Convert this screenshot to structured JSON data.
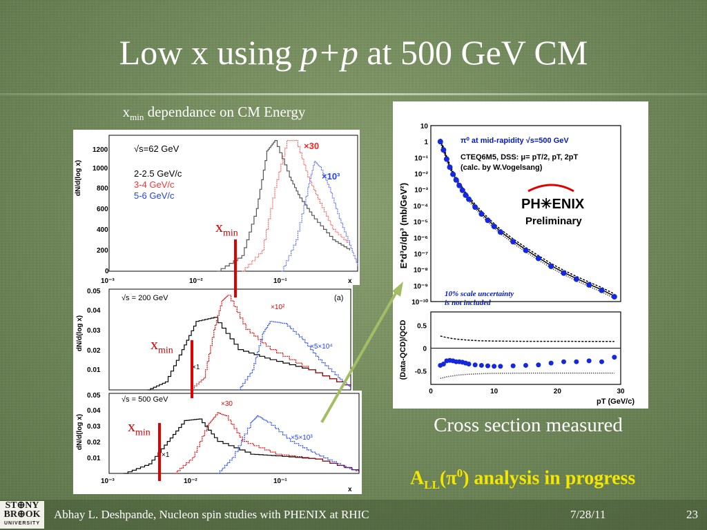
{
  "slide": {
    "title_part1": "Low x using ",
    "title_italic": "p+p",
    "title_part2": " at 500 GeV CM",
    "subtitle_x": "x",
    "subtitle_sub": "min",
    "subtitle_rest": " dependance on CM Energy",
    "xmin_label": "x",
    "xmin_sub": "min",
    "caption": "Cross section measured",
    "progress_A": "A",
    "progress_LL": "LL",
    "progress_open": "(π",
    "progress_zero": "0",
    "progress_rest": ") analysis in progress"
  },
  "footer": {
    "logo_line1": "ST⊕NY",
    "logo_line2": "BR⊕OK",
    "logo_line3": "UNIVERSITY",
    "author": "Abhay L. Deshpande, Nucleon spin studies with PHENIX at RHIC",
    "date": "7/28/11",
    "page": "23"
  },
  "plot_top": {
    "ylabel": "dN/d(log x)",
    "legend_energy": "√s=62  GeV",
    "legend_1": "2-2.5 GeV/c",
    "legend_2": "3-4 GeV/c",
    "legend_3": "5-6 GeV/c",
    "scale_red": "×30",
    "scale_blue": "×10³",
    "xlabel": "x",
    "yticks": [
      "1200",
      "1000",
      "800",
      "600",
      "400",
      "200",
      "0"
    ],
    "xticks": [
      "10⁻³",
      "10⁻²",
      "10⁻¹",
      "x"
    ]
  },
  "plot_mid": {
    "ylabel": "dN/d(log x)",
    "legend_energy": "√s = 200 GeV",
    "panel_tag": "(a)",
    "scale_black": "×1",
    "scale_red": "×10²",
    "scale_blue": "×5×10⁴",
    "yticks": [
      "0.05",
      "0.04",
      "0.03",
      "0.02",
      "0.01"
    ]
  },
  "plot_bot": {
    "ylabel": "dN/d(log x)",
    "legend_energy": "√s = 500 GeV",
    "scale_black": "×1",
    "scale_red": "×30",
    "scale_blue": "×5×10³",
    "yticks": [
      "0.05",
      "0.04",
      "0.03",
      "0.02",
      "0.01"
    ],
    "xticks": [
      "10⁻³",
      "10⁻²",
      "10⁻¹"
    ],
    "xlabel": "x"
  },
  "plot_right": {
    "ylabel": "E*d³σ/dp³ (mb/GeV²)",
    "ylabel_ratio": "(Data-QCD)/QCD",
    "legend_1": "π⁰ at mid-rapidity √s=500 GeV",
    "legend_2": "CTEQ6M5, DSS: μ= pT/2, pT, 2pT",
    "legend_3": "(calc. by W.Vogelsang)",
    "logo": "PH✳ENIX",
    "preliminary": "Preliminary",
    "note_1": "10% scale uncertainty",
    "note_2": "is not included",
    "yticks": [
      "10",
      "1",
      "10⁻¹",
      "10⁻²",
      "10⁻³",
      "10⁻⁴",
      "10⁻⁵",
      "10⁻⁶",
      "10⁻⁷",
      "10⁻⁸",
      "10⁻⁹",
      "10⁻¹⁰"
    ],
    "ratio_yticks": [
      "0.5",
      "0",
      "-0.5"
    ],
    "xticks": [
      "0",
      "10",
      "20",
      "30"
    ],
    "xlabel": "pT (GeV/c)"
  },
  "colors": {
    "background": "#6f8859",
    "accent_red": "#e00000",
    "progress_yellow": "#f3e600",
    "hist_gray": "#555555",
    "hist_red": "#ff6060",
    "hist_blue": "#6070ff"
  },
  "chart_data": [
    {
      "type": "line",
      "y_scale": "linear",
      "x_scale": "log",
      "xlim": [
        0.001,
        1
      ],
      "ylim": [
        0,
        1300
      ],
      "series": [
        {
          "name": "2-2.5 GeV/c",
          "x": [
            0.02,
            0.04,
            0.06,
            0.08,
            0.1,
            0.15,
            0.2,
            0.3,
            0.5,
            0.8
          ],
          "y": [
            0,
            150,
            600,
            1150,
            1250,
            900,
            700,
            500,
            300,
            200
          ]
        },
        {
          "name": "3-4 GeV/c",
          "x": [
            0.04,
            0.07,
            0.1,
            0.14,
            0.18,
            0.25,
            0.35,
            0.5,
            0.8
          ],
          "y": [
            0,
            200,
            800,
            1250,
            1250,
            900,
            650,
            400,
            250
          ]
        },
        {
          "name": "5-6 GeV/c",
          "x": [
            0.12,
            0.18,
            0.25,
            0.3,
            0.35,
            0.45,
            0.6,
            0.8,
            1.0
          ],
          "y": [
            0,
            300,
            800,
            1050,
            1000,
            800,
            500,
            250,
            50
          ]
        }
      ]
    },
    {
      "type": "line",
      "y_scale": "linear",
      "x_scale": "log",
      "ylim": [
        0,
        0.05
      ],
      "series": [
        {
          "name": "×1",
          "x": [
            0.003,
            0.005,
            0.008,
            0.012,
            0.02,
            0.04,
            0.1,
            0.3,
            1.0
          ],
          "y": [
            0,
            0.004,
            0.02,
            0.034,
            0.036,
            0.02,
            0.015,
            0.01,
            0.001
          ]
        },
        {
          "name": "×10²",
          "x": [
            0.01,
            0.015,
            0.02,
            0.025,
            0.03,
            0.05,
            0.1,
            0.3,
            1.0
          ],
          "y": [
            0,
            0.006,
            0.03,
            0.044,
            0.047,
            0.03,
            0.02,
            0.01,
            0.001
          ]
        },
        {
          "name": "×5×10⁴",
          "x": [
            0.04,
            0.06,
            0.08,
            0.1,
            0.15,
            0.25,
            0.4,
            0.7,
            1.0
          ],
          "y": [
            0,
            0.01,
            0.028,
            0.034,
            0.033,
            0.025,
            0.015,
            0.006,
            0.001
          ]
        }
      ]
    },
    {
      "type": "line",
      "y_scale": "linear",
      "x_scale": "log",
      "ylim": [
        0,
        0.05
      ],
      "series": [
        {
          "name": "×1",
          "x": [
            0.0015,
            0.003,
            0.005,
            0.008,
            0.012,
            0.02,
            0.05,
            0.1,
            0.3,
            1.0
          ],
          "y": [
            0,
            0.006,
            0.02,
            0.033,
            0.034,
            0.02,
            0.012,
            0.011,
            0.009,
            0.001
          ]
        },
        {
          "name": "×30",
          "x": [
            0.006,
            0.01,
            0.015,
            0.02,
            0.025,
            0.04,
            0.1,
            0.3,
            1.0
          ],
          "y": [
            0,
            0.01,
            0.03,
            0.038,
            0.036,
            0.02,
            0.012,
            0.009,
            0.001
          ]
        },
        {
          "name": "×5×10³",
          "x": [
            0.02,
            0.03,
            0.05,
            0.06,
            0.08,
            0.15,
            0.3,
            0.6,
            1.0
          ],
          "y": [
            0,
            0.01,
            0.032,
            0.036,
            0.032,
            0.02,
            0.012,
            0.005,
            0.001
          ]
        }
      ]
    },
    {
      "type": "scatter",
      "x_scale": "linear",
      "y_scale": "log",
      "xlim": [
        0,
        30
      ],
      "ylim": [
        1e-10,
        10
      ],
      "x": [
        1.5,
        2,
        2.5,
        3,
        3.5,
        4,
        4.5,
        5,
        5.5,
        6,
        7,
        8,
        9,
        10,
        11,
        13,
        15,
        17,
        19,
        21,
        23,
        25,
        27,
        29
      ],
      "y": [
        1,
        0.3,
        0.08,
        0.025,
        0.009,
        0.004,
        0.0018,
        0.0009,
        0.00045,
        0.00025,
        8e-05,
        3e-05,
        1.2e-05,
        5e-06,
        2.2e-06,
        5.5e-07,
        1.6e-07,
        5e-08,
        1.6e-08,
        6e-09,
        2.5e-09,
        1.1e-09,
        5e-10,
        2e-10
      ]
    },
    {
      "type": "scatter",
      "x_scale": "linear",
      "y_scale": "linear",
      "xlim": [
        0,
        30
      ],
      "ylim": [
        -0.8,
        0.8
      ],
      "x": [
        1.5,
        2,
        2.5,
        3,
        3.5,
        4,
        4.5,
        5,
        5.5,
        6,
        7,
        8,
        9,
        10,
        11,
        13,
        15,
        17,
        19,
        21,
        23,
        25,
        27,
        29
      ],
      "y": [
        -0.38,
        -0.35,
        -0.28,
        -0.27,
        -0.28,
        -0.3,
        -0.3,
        -0.31,
        -0.33,
        -0.35,
        -0.37,
        -0.38,
        -0.39,
        -0.4,
        -0.4,
        -0.39,
        -0.38,
        -0.37,
        -0.33,
        -0.3,
        -0.3,
        -0.28,
        -0.3,
        -0.2
      ]
    }
  ]
}
